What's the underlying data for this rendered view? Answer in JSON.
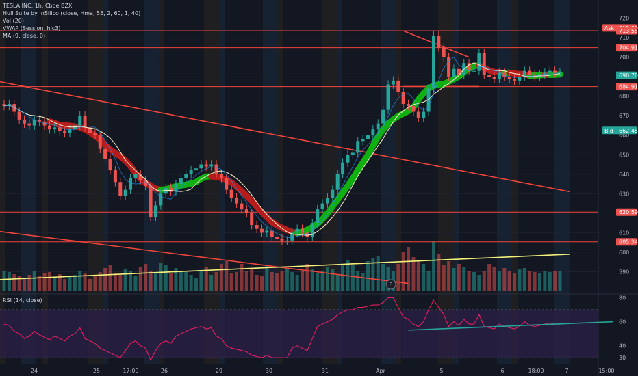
{
  "header": {
    "symbol_line": "TESLA INC, 1h, Cboe BZX",
    "indicators": [
      "Hull Suite by InSilico (close, Hma, 55, 2, 60, 1, 40)",
      "Vol (20)",
      "VWAP (Session, hlc3)",
      "MA (9, close, 0)"
    ],
    "rsi_label": "RSI (14, close)",
    "earnings_marker": "E"
  },
  "colors": {
    "background": "#131722",
    "up": "#26a69a",
    "down": "#ef5350",
    "hull_down": "#b71c1c",
    "hull_up": "#11b011",
    "ma": "#f0e6c0",
    "vwap": "#2196f3",
    "trendline": "#f0453a",
    "yellow_line": "#f5f07a",
    "rsi_line": "#e91e63",
    "rsi_band": "#2a1f45"
  },
  "chart_data": [
    {
      "type": "candlestick",
      "title": "TESLA INC, 1h, Cboe BZX",
      "ylim": [
        580,
        723
      ],
      "y_ticks": [
        590,
        600,
        610,
        620,
        630,
        640,
        650,
        660,
        670,
        680,
        690,
        700,
        710,
        720
      ],
      "x_ticks": [
        "24",
        "25",
        "17:00",
        "26",
        "29",
        "30",
        "31",
        "Apr",
        "5",
        "6",
        "18:00",
        "7",
        "15:00"
      ],
      "price_tags": [
        {
          "label": "Ask",
          "value": "715.00",
          "color": "#ef5350"
        },
        {
          "label": "",
          "value": "713.55",
          "color": "#ef5350"
        },
        {
          "label": "",
          "value": "704.91",
          "color": "#ef5350"
        },
        {
          "label": "",
          "value": "690.70",
          "color": "#26a69a"
        },
        {
          "label": "",
          "value": "684.91",
          "color": "#ef5350"
        },
        {
          "label": "Bid",
          "value": "662.45",
          "color": "#26a69a"
        },
        {
          "label": "",
          "value": "620.59",
          "color": "#ef5350"
        },
        {
          "label": "",
          "value": "605.34",
          "color": "#ef5350"
        }
      ],
      "horizontal_levels": [
        713.55,
        704.91,
        684.91,
        620.59,
        605.34
      ],
      "close": [
        675,
        676,
        672,
        668,
        666,
        665,
        668,
        667,
        665,
        663,
        664,
        662,
        661,
        663,
        665,
        670,
        664,
        661,
        660,
        653,
        648,
        642,
        636,
        629,
        632,
        638,
        640,
        637,
        634,
        618,
        624,
        630,
        633,
        631,
        635,
        638,
        640,
        642,
        643,
        645,
        644,
        645,
        640,
        638,
        632,
        628,
        625,
        622,
        620,
        614,
        612,
        610,
        611,
        608,
        607,
        606,
        606,
        610,
        612,
        610,
        608,
        615,
        622,
        625,
        628,
        632,
        640,
        646,
        650,
        651,
        657,
        658,
        660,
        663,
        666,
        673,
        686,
        688,
        682,
        676,
        675,
        672,
        669,
        672,
        684,
        711,
        705,
        700,
        690,
        694,
        691,
        697,
        693,
        693,
        702,
        691,
        690,
        689,
        692,
        690,
        689,
        688,
        690,
        693,
        691,
        690,
        691,
        692,
        693,
        692,
        692
      ],
      "series": [
        {
          "name": "MA (9, close, 0)"
        },
        {
          "name": "Hull Suite by InSilico (close, Hma, 55, 2, 60, 1, 40)"
        },
        {
          "name": "VWAP (Session, hlc3)"
        },
        {
          "name": "Vol (20)",
          "values": [
            30,
            28,
            25,
            22,
            18,
            24,
            30,
            22,
            26,
            28,
            20,
            25,
            18,
            22,
            24,
            30,
            26,
            18,
            22,
            28,
            34,
            38,
            26,
            24,
            32,
            30,
            22,
            36,
            40,
            30,
            28,
            42,
            38,
            26,
            34,
            30,
            28,
            24,
            20,
            30,
            36,
            24,
            28,
            40,
            44,
            26,
            28,
            40,
            30,
            32,
            24,
            22,
            38,
            28,
            26,
            30,
            34,
            28,
            24,
            30,
            40,
            32,
            26,
            30,
            36,
            32,
            24,
            40,
            46,
            38,
            30,
            26,
            44,
            48,
            52,
            40,
            36,
            30,
            40,
            58,
            64,
            50,
            46,
            40,
            30,
            74,
            54,
            38,
            44,
            34,
            40,
            36,
            30,
            28,
            24,
            30,
            40,
            36,
            30,
            34,
            30,
            26,
            32,
            34,
            30,
            28,
            26,
            30,
            28,
            30,
            30
          ]
        }
      ]
    },
    {
      "type": "line",
      "title": "RSI (14, close)",
      "ylim": [
        25,
        82
      ],
      "y_ticks": [
        30,
        40,
        60,
        80
      ],
      "bands": [
        30,
        70
      ],
      "series": [
        {
          "name": "RSI (14, close)",
          "values": [
            58,
            57,
            52,
            50,
            46,
            48,
            52,
            49,
            47,
            45,
            48,
            46,
            44,
            48,
            50,
            55,
            46,
            44,
            42,
            38,
            36,
            34,
            32,
            30,
            36,
            42,
            44,
            40,
            38,
            28,
            36,
            42,
            44,
            42,
            48,
            50,
            52,
            54,
            55,
            56,
            54,
            55,
            48,
            46,
            40,
            38,
            37,
            36,
            35,
            32,
            31,
            30,
            32,
            30,
            30,
            30,
            30,
            38,
            40,
            38,
            36,
            46,
            56,
            58,
            60,
            62,
            66,
            68,
            70,
            70,
            72,
            72,
            73,
            74,
            74,
            76,
            80,
            80,
            72,
            64,
            62,
            58,
            56,
            60,
            70,
            78,
            72,
            66,
            56,
            60,
            57,
            62,
            58,
            58,
            66,
            56,
            55,
            54,
            58,
            56,
            55,
            54,
            56,
            60,
            57,
            56,
            57,
            58,
            59,
            58,
            58
          ]
        }
      ]
    }
  ]
}
